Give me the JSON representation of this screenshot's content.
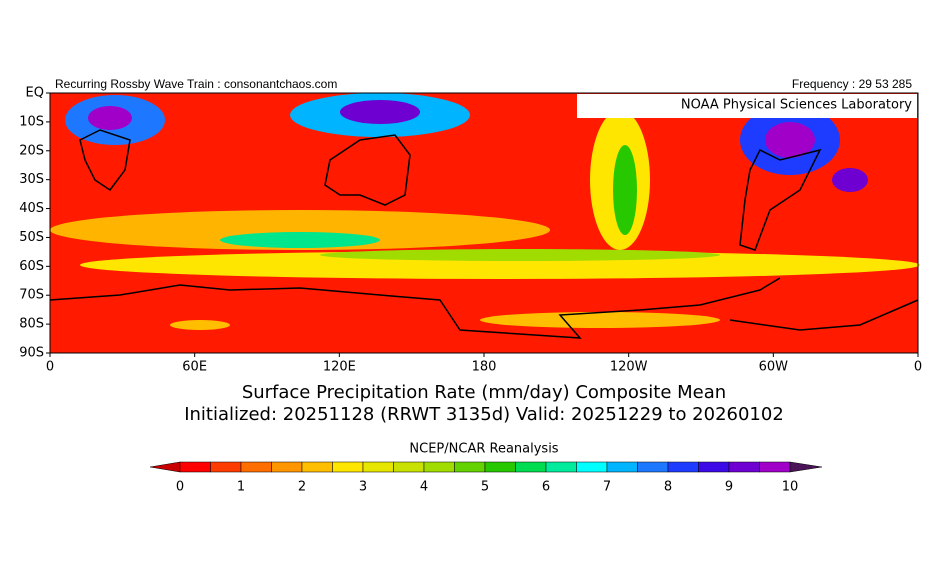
{
  "header": {
    "left": "Recurring Rossby Wave Train : consonantchaos.com",
    "right": "Frequency : 29 53 285",
    "badge": "NOAA Physical Sciences Laboratory"
  },
  "map": {
    "lat_labels": [
      "EQ",
      "10S",
      "20S",
      "30S",
      "40S",
      "50S",
      "60S",
      "70S",
      "80S",
      "90S"
    ],
    "lon_labels": [
      "0",
      "60E",
      "120E",
      "180",
      "120W",
      "60W",
      "0"
    ]
  },
  "title": {
    "line1": "Surface Precipitation Rate (mm/day) Composite Mean",
    "line2": "Initialized: 20251128 (RRWT 3135d) Valid: 20251229 to 20260102",
    "source": "NCEP/NCAR Reanalysis"
  },
  "colorbar": {
    "lim": [
      0,
      10
    ],
    "ticks": [
      0,
      1,
      2,
      3,
      4,
      5,
      6,
      7,
      8,
      9,
      10
    ],
    "under": "#c80000",
    "over": "#4b1458",
    "colors": [
      "#ff0000",
      "#ff3c00",
      "#ff6e00",
      "#ff9600",
      "#ffbe00",
      "#ffe600",
      "#e6e600",
      "#c8e100",
      "#a0dc00",
      "#64d200",
      "#28c800",
      "#00dc50",
      "#00eb9b",
      "#00ffff",
      "#00b4ff",
      "#1e78ff",
      "#1e3cff",
      "#3c0ae6",
      "#6e00d2",
      "#a000c8"
    ]
  }
}
